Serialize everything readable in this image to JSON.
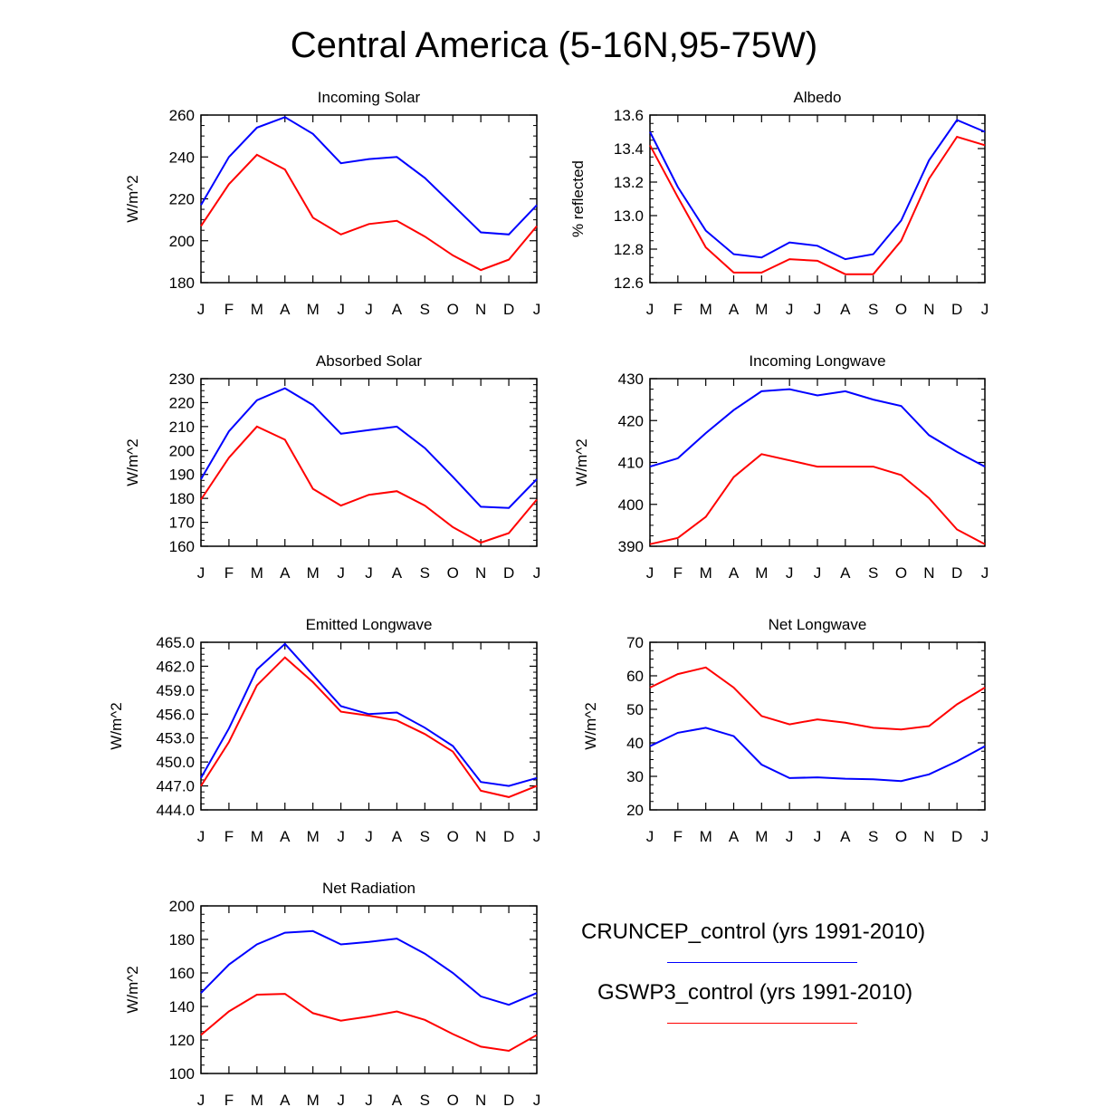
{
  "title": "Central America (5-16N,95-75W)",
  "colors": {
    "series1": "#0000ff",
    "series2": "#ff0000"
  },
  "legend": [
    {
      "label": "CRUNCEP_control (yrs 1991-2010)",
      "color": "#0000ff"
    },
    {
      "label": "GSWP3_control (yrs 1991-2010)",
      "color": "#ff0000"
    }
  ],
  "chart_data": [
    {
      "type": "line",
      "title": "Incoming Solar",
      "ylabel": "W/m^2",
      "categories": [
        "J",
        "F",
        "M",
        "A",
        "M",
        "J",
        "J",
        "A",
        "S",
        "O",
        "N",
        "D",
        "J"
      ],
      "ylim": [
        180,
        260
      ],
      "yticks": [
        180,
        200,
        220,
        240,
        260
      ],
      "ytick_labels": [
        "180",
        "200",
        "220",
        "240",
        "260"
      ],
      "series": [
        {
          "name": "CRUNCEP_control (yrs 1991-2010)",
          "values": [
            217,
            240,
            254,
            259,
            251,
            237,
            239,
            240,
            230,
            217,
            204,
            203,
            217
          ]
        },
        {
          "name": "GSWP3_control (yrs 1991-2010)",
          "values": [
            207,
            227,
            241,
            234,
            211,
            203,
            208,
            209.5,
            202,
            193,
            186,
            191,
            207
          ]
        }
      ]
    },
    {
      "type": "line",
      "title": "Albedo",
      "ylabel": "% reflected",
      "categories": [
        "J",
        "F",
        "M",
        "A",
        "M",
        "J",
        "J",
        "A",
        "S",
        "O",
        "N",
        "D",
        "J"
      ],
      "ylim": [
        12.6,
        13.6
      ],
      "yticks": [
        12.6,
        12.8,
        13.0,
        13.2,
        13.4,
        13.6
      ],
      "ytick_labels": [
        "12.6",
        "12.8",
        "13.0",
        "13.2",
        "13.4",
        "13.6"
      ],
      "series": [
        {
          "name": "CRUNCEP_control (yrs 1991-2010)",
          "values": [
            13.5,
            13.17,
            12.91,
            12.77,
            12.75,
            12.84,
            12.82,
            12.74,
            12.77,
            12.97,
            13.33,
            13.57,
            13.5
          ]
        },
        {
          "name": "GSWP3_control (yrs 1991-2010)",
          "values": [
            13.42,
            13.11,
            12.81,
            12.66,
            12.66,
            12.74,
            12.73,
            12.65,
            12.65,
            12.85,
            13.22,
            13.47,
            13.42
          ]
        }
      ]
    },
    {
      "type": "line",
      "title": "Absorbed Solar",
      "ylabel": "W/m^2",
      "categories": [
        "J",
        "F",
        "M",
        "A",
        "M",
        "J",
        "J",
        "A",
        "S",
        "O",
        "N",
        "D",
        "J"
      ],
      "ylim": [
        160,
        230
      ],
      "yticks": [
        160,
        170,
        180,
        190,
        200,
        210,
        220,
        230
      ],
      "ytick_labels": [
        "160",
        "170",
        "180",
        "190",
        "200",
        "210",
        "220",
        "230"
      ],
      "series": [
        {
          "name": "CRUNCEP_control (yrs 1991-2010)",
          "values": [
            188,
            208,
            221,
            226,
            219,
            207,
            208.5,
            210,
            201,
            189,
            176.5,
            176,
            188
          ]
        },
        {
          "name": "GSWP3_control (yrs 1991-2010)",
          "values": [
            179.5,
            197,
            210,
            204.5,
            184,
            177,
            181.5,
            183,
            177,
            168,
            161.5,
            165.5,
            179.5
          ]
        }
      ]
    },
    {
      "type": "line",
      "title": "Incoming Longwave",
      "ylabel": "W/m^2",
      "categories": [
        "J",
        "F",
        "M",
        "A",
        "M",
        "J",
        "J",
        "A",
        "S",
        "O",
        "N",
        "D",
        "J"
      ],
      "ylim": [
        390,
        430
      ],
      "yticks": [
        390,
        400,
        410,
        420,
        430
      ],
      "ytick_labels": [
        "390",
        "400",
        "410",
        "420",
        "430"
      ],
      "series": [
        {
          "name": "CRUNCEP_control (yrs 1991-2010)",
          "values": [
            409,
            411,
            417,
            422.5,
            427,
            427.5,
            426,
            427,
            425,
            423.5,
            416.5,
            412.5,
            409
          ]
        },
        {
          "name": "GSWP3_control (yrs 1991-2010)",
          "values": [
            390.5,
            392,
            397,
            406.5,
            412,
            410.5,
            409,
            409,
            409,
            407,
            401.5,
            394,
            390.5
          ]
        }
      ]
    },
    {
      "type": "line",
      "title": "Emitted Longwave",
      "ylabel": "W/m^2",
      "categories": [
        "J",
        "F",
        "M",
        "A",
        "M",
        "J",
        "J",
        "A",
        "S",
        "O",
        "N",
        "D",
        "J"
      ],
      "ylim": [
        444,
        465
      ],
      "yticks": [
        444,
        447,
        450,
        453,
        456,
        459,
        462,
        465
      ],
      "ytick_labels": [
        "444.0",
        "447.0",
        "450.0",
        "453.0",
        "456.0",
        "459.0",
        "462.0",
        "465.0"
      ],
      "series": [
        {
          "name": "CRUNCEP_control (yrs 1991-2010)",
          "values": [
            448,
            454.2,
            461.6,
            464.8,
            460.9,
            457,
            456,
            456.2,
            454.3,
            452,
            447.5,
            447,
            448
          ]
        },
        {
          "name": "GSWP3_control (yrs 1991-2010)",
          "values": [
            447,
            452.5,
            459.6,
            463.1,
            460,
            456.3,
            455.8,
            455.2,
            453.5,
            451.3,
            446.4,
            445.6,
            447
          ]
        }
      ]
    },
    {
      "type": "line",
      "title": "Net Longwave",
      "ylabel": "W/m^2",
      "categories": [
        "J",
        "F",
        "M",
        "A",
        "M",
        "J",
        "J",
        "A",
        "S",
        "O",
        "N",
        "D",
        "J"
      ],
      "ylim": [
        20,
        70
      ],
      "yticks": [
        20,
        30,
        40,
        50,
        60,
        70
      ],
      "ytick_labels": [
        "20",
        "30",
        "40",
        "50",
        "60",
        "70"
      ],
      "series": [
        {
          "name": "CRUNCEP_control (yrs 1991-2010)",
          "values": [
            39,
            43,
            44.5,
            42,
            33.5,
            29.5,
            29.7,
            29.3,
            29.1,
            28.6,
            30.6,
            34.5,
            39
          ]
        },
        {
          "name": "GSWP3_control (yrs 1991-2010)",
          "values": [
            56.5,
            60.5,
            62.5,
            56.5,
            48,
            45.5,
            47,
            46,
            44.5,
            44,
            45,
            51.5,
            56.5
          ]
        }
      ]
    },
    {
      "type": "line",
      "title": "Net Radiation",
      "ylabel": "W/m^2",
      "categories": [
        "J",
        "F",
        "M",
        "A",
        "M",
        "J",
        "J",
        "A",
        "S",
        "O",
        "N",
        "D",
        "J"
      ],
      "ylim": [
        100,
        200
      ],
      "yticks": [
        100,
        120,
        140,
        160,
        180,
        200
      ],
      "ytick_labels": [
        "100",
        "120",
        "140",
        "160",
        "180",
        "200"
      ],
      "series": [
        {
          "name": "CRUNCEP_control (yrs 1991-2010)",
          "values": [
            148,
            165,
            177,
            184,
            185,
            177,
            178.5,
            180.5,
            171.5,
            160,
            146,
            141,
            148
          ]
        },
        {
          "name": "GSWP3_control (yrs 1991-2010)",
          "values": [
            123,
            137,
            147,
            147.5,
            136,
            131.5,
            134,
            137,
            132,
            123.5,
            116,
            113.5,
            123
          ]
        }
      ]
    }
  ]
}
